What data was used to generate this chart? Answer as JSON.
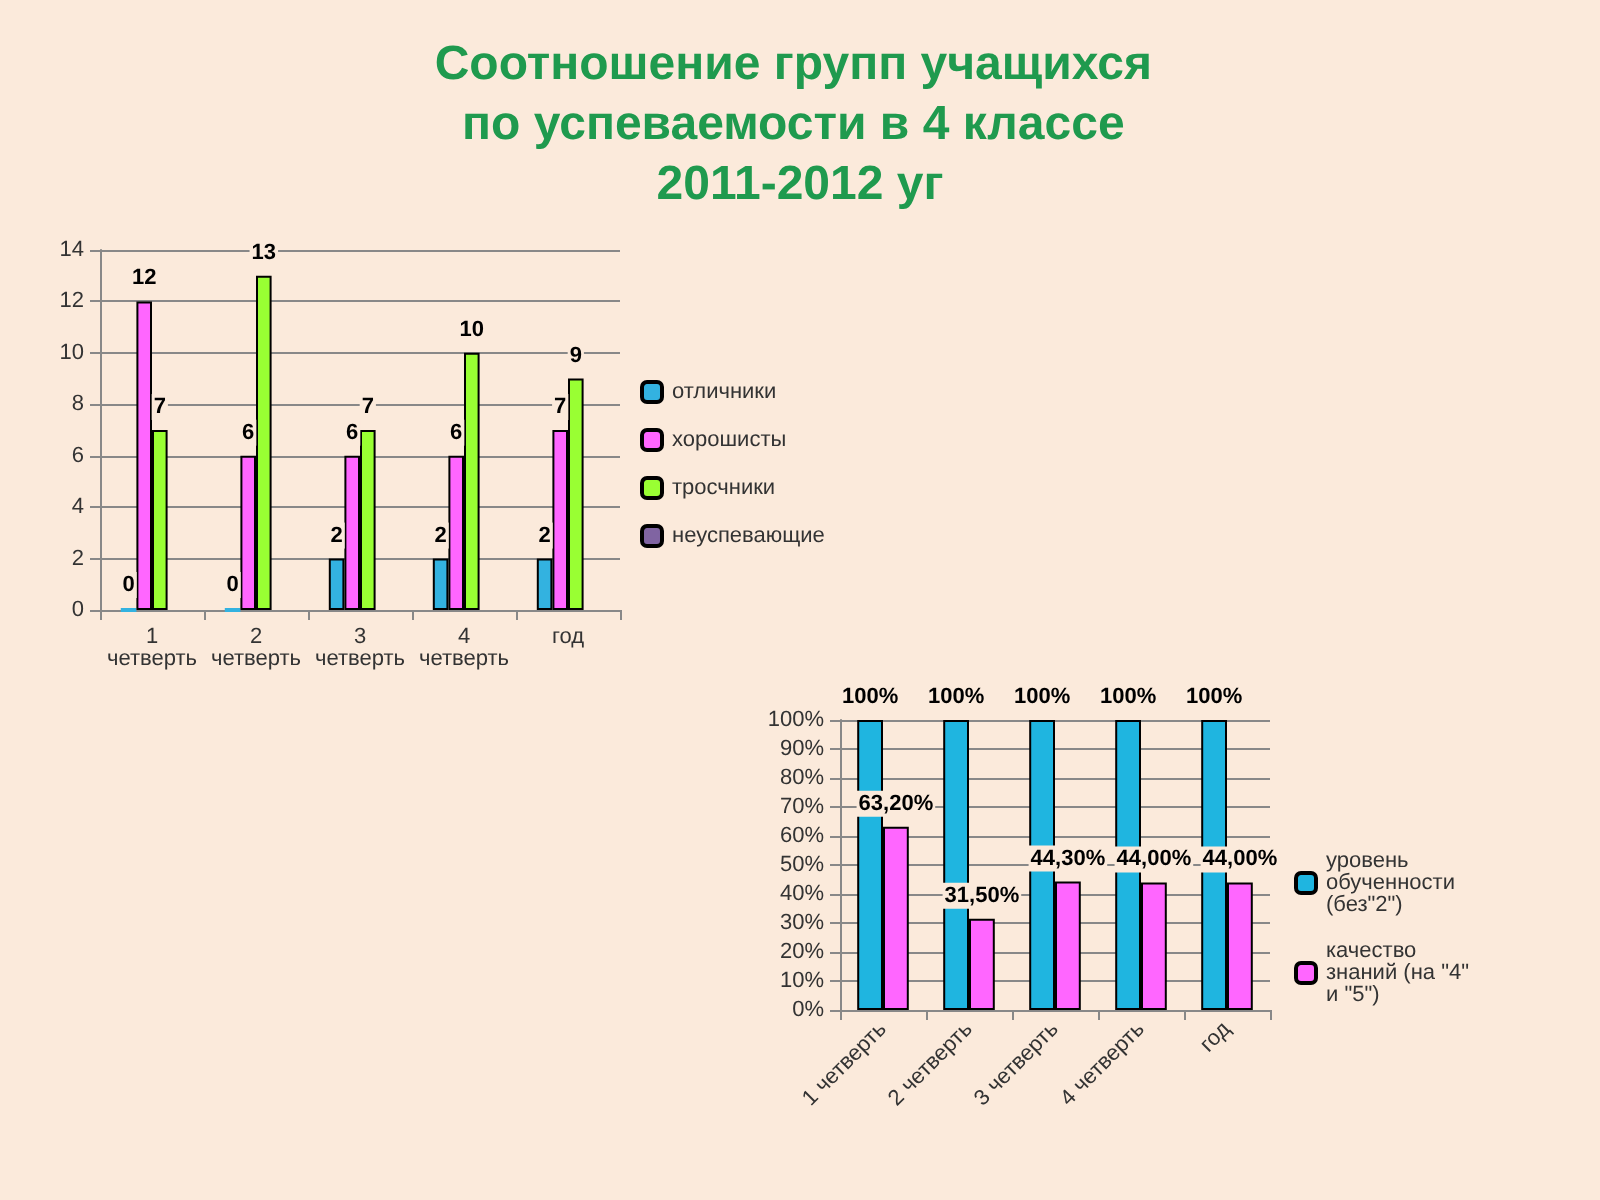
{
  "chart_data": [
    {
      "type": "bar",
      "title": "Соотношение групп учащихся по успеваемости в 4 классе 2011-2012 уг",
      "categories": [
        "1 четверть",
        "2 четверть",
        "3 четверть",
        "4 четверть",
        "год"
      ],
      "series": [
        {
          "name": "отличники",
          "color": "#33b2e0",
          "values": [
            0,
            0,
            2,
            2,
            2
          ]
        },
        {
          "name": "хорошисты",
          "color": "#ff66ff",
          "values": [
            12,
            6,
            6,
            6,
            7
          ]
        },
        {
          "name": "тросчники",
          "color": "#99ff33",
          "values": [
            7,
            13,
            7,
            10,
            9
          ]
        },
        {
          "name": "неуспевающие",
          "color": "#8064a2",
          "values": [
            null,
            null,
            null,
            null,
            null
          ]
        }
      ],
      "ylim": [
        0,
        14
      ],
      "yticks": [
        0,
        2,
        4,
        6,
        8,
        10,
        12,
        14
      ],
      "grid": "y",
      "legend": "right",
      "data_labels": true
    },
    {
      "type": "bar",
      "categories": [
        "1 четверть",
        "2 четверть",
        "3 четверть",
        "4 четверть",
        "год"
      ],
      "series": [
        {
          "name": "уровень обученности (без\"2\")",
          "color": "#1fb5e0",
          "values": [
            100,
            100,
            100,
            100,
            100
          ],
          "value_labels": [
            "100%",
            "100%",
            "100%",
            "100%",
            "100%"
          ]
        },
        {
          "name": "качество знаний (на \"4\" и \"5\")",
          "color": "#ff66ff",
          "values": [
            63.2,
            31.5,
            44.3,
            44,
            44
          ],
          "value_labels": [
            "63,20%",
            "31,50%",
            "44,30%",
            "44,00%",
            "44,00%"
          ]
        }
      ],
      "ylim": [
        0,
        100
      ],
      "yticks": [
        {
          "value": 0,
          "label": "0%"
        },
        {
          "value": 10,
          "label": "10%"
        },
        {
          "value": 20,
          "label": "20%"
        },
        {
          "value": 30,
          "label": "30%"
        },
        {
          "value": 40,
          "label": "40%"
        },
        {
          "value": 50,
          "label": "50%"
        },
        {
          "value": 60,
          "label": "60%"
        },
        {
          "value": 70,
          "label": "70%"
        },
        {
          "value": 80,
          "label": "80%"
        },
        {
          "value": 90,
          "label": "90%"
        },
        {
          "value": 100,
          "label": "100%"
        }
      ],
      "grid": "y",
      "legend": "right"
    }
  ]
}
